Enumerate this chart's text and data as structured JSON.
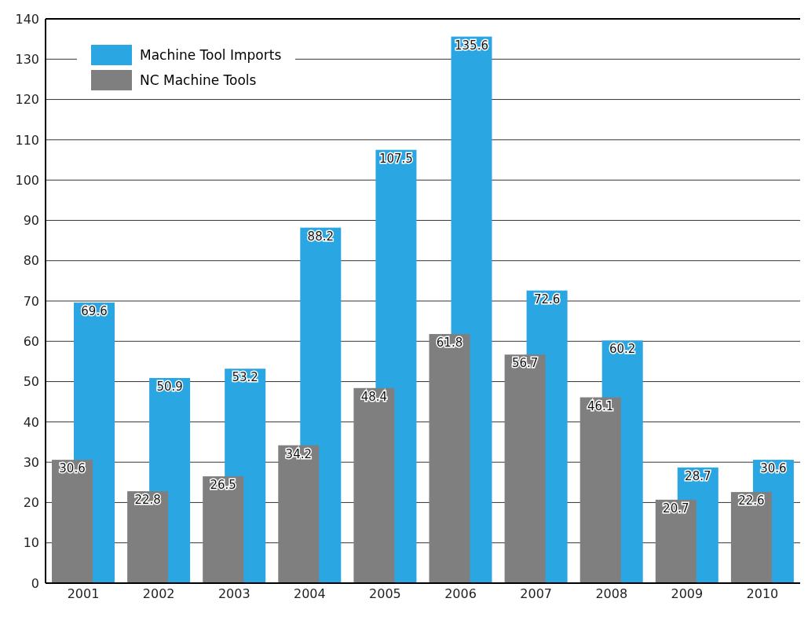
{
  "chart_data": {
    "type": "bar",
    "categories": [
      "2001",
      "2002",
      "2003",
      "2004",
      "2005",
      "2006",
      "2007",
      "2008",
      "2009",
      "2010"
    ],
    "series": [
      {
        "name": "Machine Tool Imports",
        "color": "#2aa6e2",
        "values": [
          69.6,
          50.9,
          53.2,
          88.2,
          107.5,
          135.6,
          72.6,
          60.2,
          28.7,
          30.6
        ]
      },
      {
        "name": "NC Machine Tools",
        "color": "#7f7f7f",
        "values": [
          30.6,
          22.8,
          26.5,
          34.2,
          48.4,
          61.8,
          56.7,
          46.1,
          20.7,
          22.6
        ]
      }
    ],
    "ylim": [
      0,
      140
    ],
    "yticks": [
      0,
      10,
      20,
      30,
      40,
      50,
      60,
      70,
      80,
      90,
      100,
      110,
      120,
      130,
      140
    ],
    "grid": "y",
    "legend": "top left",
    "data_labels": true
  }
}
